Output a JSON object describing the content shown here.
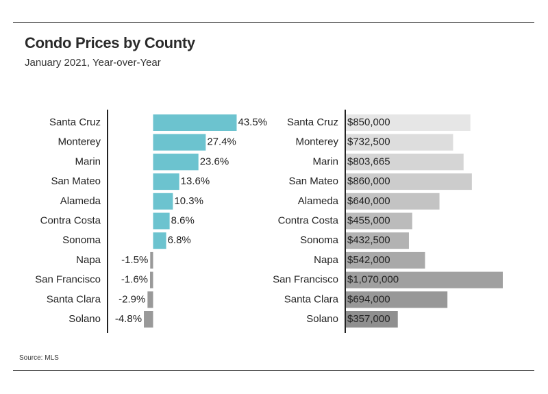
{
  "title": "Condo Prices by County",
  "subtitle": "January 2021, Year-over-Year",
  "source": "Source: MLS",
  "colors": {
    "positive_bar": "#6cc3cf",
    "negative_bar": "#999999",
    "axis": "#222222",
    "price_bar_light": "#e6e6e6",
    "price_bar_dark": "#8f8f8f"
  },
  "chart_data": [
    {
      "type": "bar",
      "orientation": "horizontal",
      "categories": [
        "Santa Cruz",
        "Monterey",
        "Marin",
        "San Mateo",
        "Alameda",
        "Contra Costa",
        "Sonoma",
        "Napa",
        "San Francisco",
        "Santa Clara",
        "Solano"
      ],
      "values": [
        43.5,
        27.4,
        23.6,
        13.6,
        10.3,
        8.6,
        6.8,
        -1.5,
        -1.6,
        -2.9,
        -4.8
      ],
      "value_labels": [
        "43.5%",
        "27.4%",
        "23.6%",
        "13.6%",
        "10.3%",
        "8.6%",
        "6.8%",
        "-1.5%",
        "-1.6%",
        "-2.9%",
        "-4.8%"
      ],
      "unit": "%",
      "xlim": [
        -24,
        50
      ]
    },
    {
      "type": "bar",
      "orientation": "horizontal",
      "categories": [
        "Santa Cruz",
        "Monterey",
        "Marin",
        "San Mateo",
        "Alameda",
        "Contra Costa",
        "Sonoma",
        "Napa",
        "San Francisco",
        "Santa Clara",
        "Solano"
      ],
      "values": [
        850000,
        732500,
        803665,
        860000,
        640000,
        455000,
        432500,
        542000,
        1070000,
        694000,
        357000
      ],
      "value_labels": [
        "$850,000",
        "$732,500",
        "$803,665",
        "$860,000",
        "$640,000",
        "$455,000",
        "$432,500",
        "$542,000",
        "$1,070,000",
        "$694,000",
        "$357,000"
      ],
      "xlim": [
        0,
        1070000
      ]
    }
  ]
}
